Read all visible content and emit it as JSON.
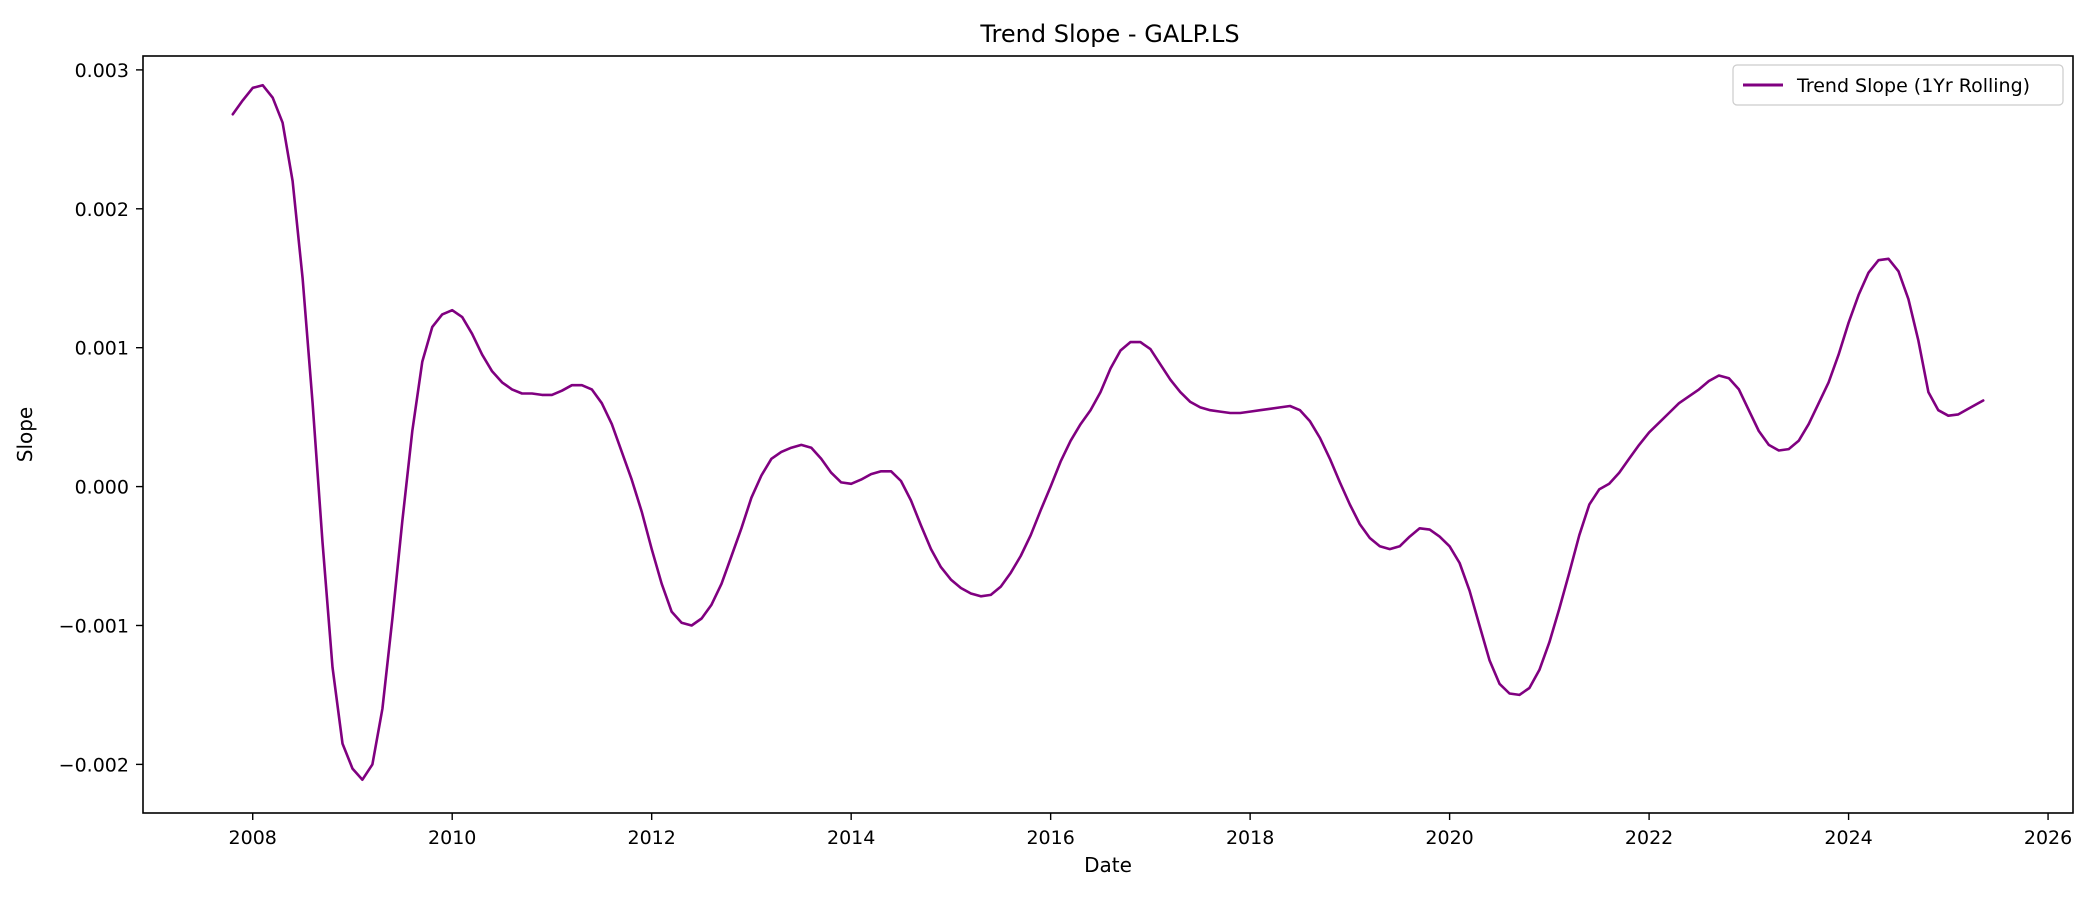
{
  "chart_data": {
    "type": "line",
    "title": "Trend Slope - GALP.LS",
    "xlabel": "Date",
    "ylabel": "Slope",
    "xlim": [
      2006.9,
      2026.25
    ],
    "ylim": [
      -0.00235,
      0.0031
    ],
    "xticks": [
      2008,
      2010,
      2012,
      2014,
      2016,
      2018,
      2020,
      2022,
      2024,
      2026
    ],
    "xtick_labels": [
      "2008",
      "2010",
      "2012",
      "2014",
      "2016",
      "2018",
      "2020",
      "2022",
      "2024",
      "2026"
    ],
    "yticks": [
      -0.002,
      -0.001,
      0.0,
      0.001,
      0.002,
      0.003
    ],
    "ytick_labels": [
      "−0.002",
      "−0.001",
      "0.000",
      "0.001",
      "0.002",
      "0.003"
    ],
    "grid": false,
    "legend_position": "top-right",
    "series": [
      {
        "name": "Trend Slope (1Yr Rolling)",
        "color": "#800080",
        "points": [
          [
            2007.8,
            0.00268
          ],
          [
            2007.9,
            0.00278
          ],
          [
            2008.0,
            0.00287
          ],
          [
            2008.1,
            0.00289
          ],
          [
            2008.2,
            0.0028
          ],
          [
            2008.3,
            0.00262
          ],
          [
            2008.4,
            0.0022
          ],
          [
            2008.5,
            0.0015
          ],
          [
            2008.6,
            0.0006
          ],
          [
            2008.7,
            -0.0004
          ],
          [
            2008.8,
            -0.0013
          ],
          [
            2008.9,
            -0.00185
          ],
          [
            2009.0,
            -0.00203
          ],
          [
            2009.1,
            -0.00211
          ],
          [
            2009.2,
            -0.002
          ],
          [
            2009.3,
            -0.0016
          ],
          [
            2009.4,
            -0.00095
          ],
          [
            2009.5,
            -0.00025
          ],
          [
            2009.6,
            0.0004
          ],
          [
            2009.7,
            0.0009
          ],
          [
            2009.8,
            0.00115
          ],
          [
            2009.9,
            0.00124
          ],
          [
            2010.0,
            0.00127
          ],
          [
            2010.1,
            0.00122
          ],
          [
            2010.2,
            0.0011
          ],
          [
            2010.3,
            0.00095
          ],
          [
            2010.4,
            0.00083
          ],
          [
            2010.5,
            0.00075
          ],
          [
            2010.6,
            0.0007
          ],
          [
            2010.7,
            0.00067
          ],
          [
            2010.8,
            0.00067
          ],
          [
            2010.9,
            0.00066
          ],
          [
            2011.0,
            0.00066
          ],
          [
            2011.1,
            0.00069
          ],
          [
            2011.2,
            0.00073
          ],
          [
            2011.3,
            0.00073
          ],
          [
            2011.4,
            0.0007
          ],
          [
            2011.5,
            0.0006
          ],
          [
            2011.6,
            0.00045
          ],
          [
            2011.7,
            0.00025
          ],
          [
            2011.8,
            5e-05
          ],
          [
            2011.9,
            -0.00018
          ],
          [
            2012.0,
            -0.00045
          ],
          [
            2012.1,
            -0.0007
          ],
          [
            2012.2,
            -0.0009
          ],
          [
            2012.3,
            -0.00098
          ],
          [
            2012.4,
            -0.001
          ],
          [
            2012.5,
            -0.00095
          ],
          [
            2012.6,
            -0.00085
          ],
          [
            2012.7,
            -0.0007
          ],
          [
            2012.8,
            -0.0005
          ],
          [
            2012.9,
            -0.0003
          ],
          [
            2013.0,
            -8e-05
          ],
          [
            2013.1,
            8e-05
          ],
          [
            2013.2,
            0.0002
          ],
          [
            2013.3,
            0.00025
          ],
          [
            2013.4,
            0.00028
          ],
          [
            2013.5,
            0.0003
          ],
          [
            2013.6,
            0.00028
          ],
          [
            2013.7,
            0.0002
          ],
          [
            2013.8,
            0.0001
          ],
          [
            2013.9,
            3e-05
          ],
          [
            2014.0,
            2e-05
          ],
          [
            2014.1,
            5e-05
          ],
          [
            2014.2,
            9e-05
          ],
          [
            2014.3,
            0.00011
          ],
          [
            2014.4,
            0.00011
          ],
          [
            2014.5,
            4e-05
          ],
          [
            2014.6,
            -0.0001
          ],
          [
            2014.7,
            -0.00028
          ],
          [
            2014.8,
            -0.00045
          ],
          [
            2014.9,
            -0.00058
          ],
          [
            2015.0,
            -0.00067
          ],
          [
            2015.1,
            -0.00073
          ],
          [
            2015.2,
            -0.00077
          ],
          [
            2015.3,
            -0.00079
          ],
          [
            2015.4,
            -0.00078
          ],
          [
            2015.5,
            -0.00072
          ],
          [
            2015.6,
            -0.00062
          ],
          [
            2015.7,
            -0.0005
          ],
          [
            2015.8,
            -0.00035
          ],
          [
            2015.9,
            -0.00017
          ],
          [
            2016.0,
            0.0
          ],
          [
            2016.1,
            0.00018
          ],
          [
            2016.2,
            0.00033
          ],
          [
            2016.3,
            0.00045
          ],
          [
            2016.4,
            0.00055
          ],
          [
            2016.5,
            0.00068
          ],
          [
            2016.6,
            0.00085
          ],
          [
            2016.7,
            0.00098
          ],
          [
            2016.8,
            0.00104
          ],
          [
            2016.9,
            0.00104
          ],
          [
            2017.0,
            0.00099
          ],
          [
            2017.1,
            0.00088
          ],
          [
            2017.2,
            0.00077
          ],
          [
            2017.3,
            0.00068
          ],
          [
            2017.4,
            0.00061
          ],
          [
            2017.5,
            0.00057
          ],
          [
            2017.6,
            0.00055
          ],
          [
            2017.7,
            0.00054
          ],
          [
            2017.8,
            0.00053
          ],
          [
            2017.9,
            0.00053
          ],
          [
            2018.0,
            0.00054
          ],
          [
            2018.1,
            0.00055
          ],
          [
            2018.2,
            0.00056
          ],
          [
            2018.3,
            0.00057
          ],
          [
            2018.4,
            0.00058
          ],
          [
            2018.5,
            0.00055
          ],
          [
            2018.6,
            0.00047
          ],
          [
            2018.7,
            0.00035
          ],
          [
            2018.8,
            0.0002
          ],
          [
            2018.9,
            3e-05
          ],
          [
            2019.0,
            -0.00013
          ],
          [
            2019.1,
            -0.00027
          ],
          [
            2019.2,
            -0.00037
          ],
          [
            2019.3,
            -0.00043
          ],
          [
            2019.4,
            -0.00045
          ],
          [
            2019.5,
            -0.00043
          ],
          [
            2019.6,
            -0.00036
          ],
          [
            2019.7,
            -0.0003
          ],
          [
            2019.8,
            -0.00031
          ],
          [
            2019.9,
            -0.00036
          ],
          [
            2020.0,
            -0.00043
          ],
          [
            2020.1,
            -0.00055
          ],
          [
            2020.2,
            -0.00075
          ],
          [
            2020.3,
            -0.001
          ],
          [
            2020.4,
            -0.00125
          ],
          [
            2020.5,
            -0.00142
          ],
          [
            2020.6,
            -0.00149
          ],
          [
            2020.7,
            -0.0015
          ],
          [
            2020.8,
            -0.00145
          ],
          [
            2020.9,
            -0.00132
          ],
          [
            2021.0,
            -0.00112
          ],
          [
            2021.1,
            -0.00088
          ],
          [
            2021.2,
            -0.00062
          ],
          [
            2021.3,
            -0.00035
          ],
          [
            2021.4,
            -0.00013
          ],
          [
            2021.5,
            -2e-05
          ],
          [
            2021.6,
            2e-05
          ],
          [
            2021.7,
            0.0001
          ],
          [
            2021.8,
            0.0002
          ],
          [
            2021.9,
            0.0003
          ],
          [
            2022.0,
            0.00039
          ],
          [
            2022.1,
            0.00046
          ],
          [
            2022.2,
            0.00053
          ],
          [
            2022.3,
            0.0006
          ],
          [
            2022.4,
            0.00065
          ],
          [
            2022.5,
            0.0007
          ],
          [
            2022.6,
            0.00076
          ],
          [
            2022.7,
            0.0008
          ],
          [
            2022.8,
            0.00078
          ],
          [
            2022.9,
            0.0007
          ],
          [
            2023.0,
            0.00055
          ],
          [
            2023.1,
            0.0004
          ],
          [
            2023.2,
            0.0003
          ],
          [
            2023.3,
            0.00026
          ],
          [
            2023.4,
            0.00027
          ],
          [
            2023.5,
            0.00033
          ],
          [
            2023.6,
            0.00045
          ],
          [
            2023.7,
            0.0006
          ],
          [
            2023.8,
            0.00075
          ],
          [
            2023.9,
            0.00095
          ],
          [
            2024.0,
            0.00118
          ],
          [
            2024.1,
            0.00138
          ],
          [
            2024.2,
            0.00154
          ],
          [
            2024.3,
            0.00163
          ],
          [
            2024.4,
            0.00164
          ],
          [
            2024.5,
            0.00155
          ],
          [
            2024.6,
            0.00135
          ],
          [
            2024.7,
            0.00105
          ],
          [
            2024.8,
            0.00068
          ],
          [
            2024.9,
            0.00055
          ],
          [
            2025.0,
            0.00051
          ],
          [
            2025.1,
            0.00052
          ],
          [
            2025.2,
            0.00056
          ],
          [
            2025.3,
            0.0006
          ],
          [
            2025.35,
            0.00062
          ]
        ]
      }
    ]
  }
}
